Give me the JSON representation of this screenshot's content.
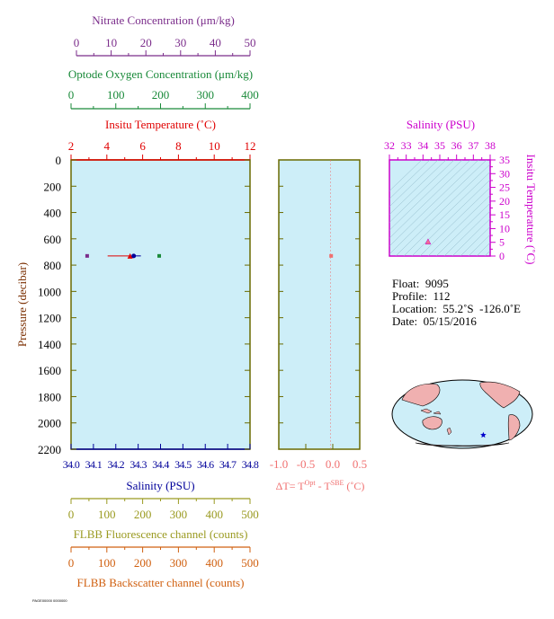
{
  "colors": {
    "nitrate": "#7b2d8b",
    "oxygen": "#1a8a3a",
    "temperature": "#e00000",
    "salinity": "#00009a",
    "delta_t": "#f07070",
    "fluorescence": "#9a9a20",
    "backscatter": "#d06010",
    "ts_axis": "#cc00cc",
    "plot_fill": "#cdeef8",
    "frame": "#6a6a00",
    "land": "#f0b0b0"
  },
  "chart_data": [
    {
      "type": "scatter",
      "name": "main-profile",
      "ylabel": "Pressure (decibar)",
      "yticks": [
        "0",
        "200",
        "400",
        "600",
        "800",
        "1000",
        "1200",
        "1400",
        "1600",
        "1800",
        "2000",
        "2200"
      ],
      "ylim": [
        2200,
        0
      ],
      "axes": {
        "nitrate": {
          "label": "Nitrate Concentration (μm/kg)",
          "ticks": [
            "0",
            "10",
            "20",
            "30",
            "40",
            "50"
          ],
          "range": [
            0,
            50
          ]
        },
        "oxygen": {
          "label": "Optode Oxygen Concentration (μm/kg)",
          "ticks": [
            "0",
            "100",
            "200",
            "300",
            "400"
          ],
          "range": [
            0,
            400
          ]
        },
        "temperature": {
          "label": "Insitu Temperature (˚C)",
          "ticks": [
            "2",
            "4",
            "6",
            "8",
            "10",
            "12"
          ],
          "range": [
            2,
            12
          ]
        },
        "salinity": {
          "label": "Salinity (PSU)",
          "ticks": [
            "34.0",
            "34.1",
            "34.2",
            "34.3",
            "34.4",
            "34.5",
            "34.6",
            "34.7",
            "34.8"
          ],
          "range": [
            34.0,
            34.8
          ]
        },
        "fluorescence": {
          "label": "FLBB Fluorescence channel (counts)",
          "ticks": [
            "0",
            "100",
            "200",
            "300",
            "400",
            "500"
          ],
          "range": [
            0,
            500
          ]
        },
        "backscatter": {
          "label": "FLBB Backscatter channel (counts)",
          "ticks": [
            "0",
            "100",
            "200",
            "300",
            "400",
            "500"
          ],
          "range": [
            0,
            500
          ]
        }
      },
      "points": [
        {
          "series": "nitrate",
          "x": 4.5,
          "pressure": 730
        },
        {
          "series": "oxygen",
          "x": 197,
          "pressure": 730
        },
        {
          "series": "temperature",
          "x": 5.3,
          "pressure": 730
        },
        {
          "series": "salinity",
          "x": 34.28,
          "pressure": 730
        }
      ]
    },
    {
      "type": "scatter",
      "name": "delta-t",
      "xlabel": "ΔT= T",
      "xlabel_sup1": "Opt",
      "xlabel_mid": " - T",
      "xlabel_sup2": "SBE",
      "xlabel_unit": " (˚C)",
      "xticks": [
        "-1.0",
        "-0.5",
        "0.0",
        "0.5"
      ],
      "xlim": [
        -1.0,
        0.5
      ],
      "points": [
        {
          "x": -0.03,
          "pressure": 730
        }
      ]
    },
    {
      "type": "scatter",
      "name": "ts-diagram",
      "xlabel": "Salinity (PSU)",
      "ylabel": "Insitu Temperature (˚C)",
      "xticks": [
        "32",
        "33",
        "34",
        "35",
        "36",
        "37",
        "38"
      ],
      "yticks": [
        "0",
        "5",
        "10",
        "15",
        "20",
        "25",
        "30",
        "35"
      ],
      "xlim": [
        32,
        38
      ],
      "ylim": [
        0,
        35
      ],
      "points": [
        {
          "x": 34.3,
          "y": 5.3
        }
      ]
    }
  ],
  "info": {
    "float_label": "Float:",
    "float_value": "9095",
    "profile_label": "Profile:",
    "profile_value": "112",
    "location_label": "Location:",
    "location_value": "55.2˚S  -126.0˚E",
    "date_label": "Date:",
    "date_value": "05/15/2016"
  },
  "map": {
    "float_lat": -55.2,
    "float_lon": -126.0
  },
  "footer": "PAGE00000 0000000"
}
